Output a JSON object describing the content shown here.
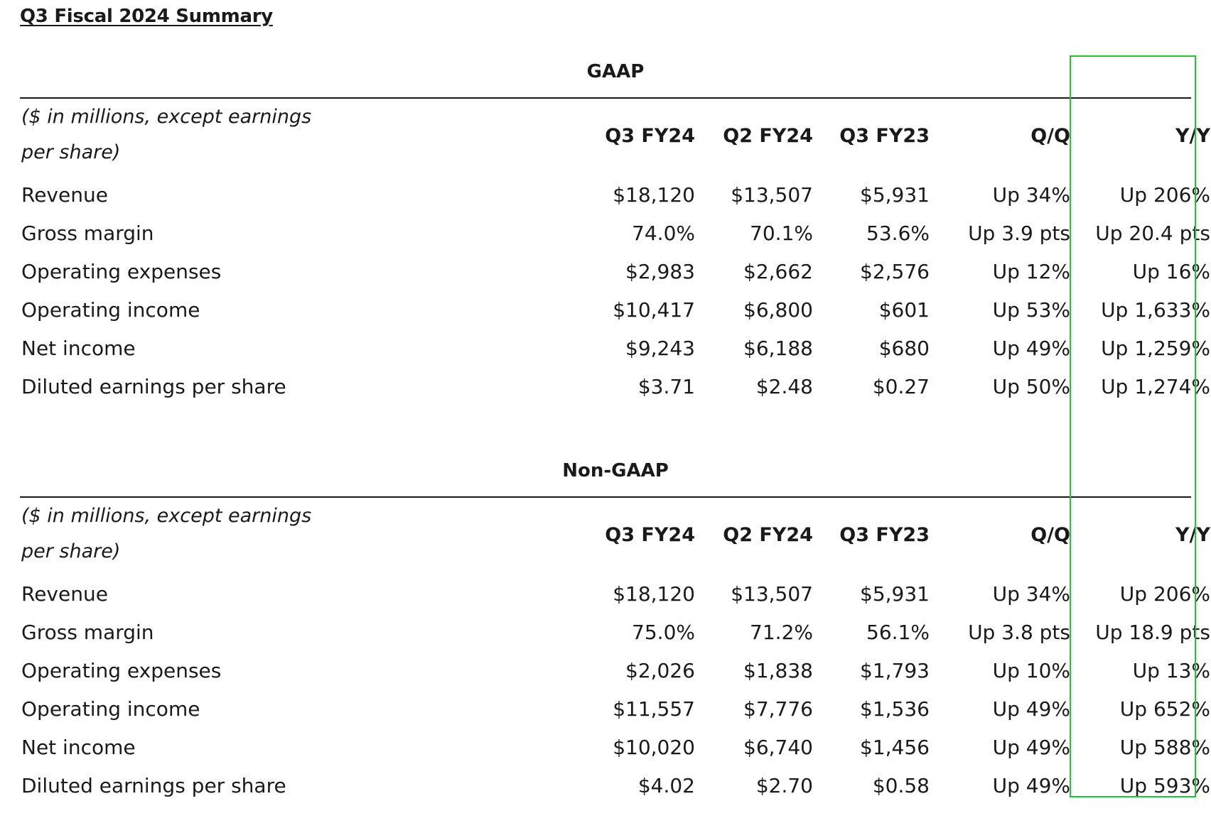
{
  "title": "Q3 Fiscal 2024 Summary",
  "highlight_color": "#22c531",
  "sections": [
    {
      "name": "GAAP",
      "unit_note": "($ in millions, except earnings per share)",
      "columns": [
        "Q3 FY24",
        "Q2 FY24",
        "Q3 FY23",
        "Q/Q",
        "Y/Y"
      ],
      "rows": [
        {
          "label": "Revenue",
          "values": [
            "$18,120",
            "$13,507",
            "$5,931",
            "Up 34%",
            "Up 206%"
          ]
        },
        {
          "label": "Gross margin",
          "values": [
            "74.0%",
            "70.1%",
            "53.6%",
            "Up 3.9 pts",
            "Up 20.4 pts"
          ]
        },
        {
          "label": "Operating expenses",
          "values": [
            "$2,983",
            "$2,662",
            "$2,576",
            "Up 12%",
            "Up 16%"
          ]
        },
        {
          "label": "Operating income",
          "values": [
            "$10,417",
            "$6,800",
            "$601",
            "Up 53%",
            "Up 1,633%"
          ]
        },
        {
          "label": "Net income",
          "values": [
            "$9,243",
            "$6,188",
            "$680",
            "Up 49%",
            "Up 1,259%"
          ]
        },
        {
          "label": "Diluted earnings per share",
          "values": [
            "$3.71",
            "$2.48",
            "$0.27",
            "Up 50%",
            "Up 1,274%"
          ]
        }
      ]
    },
    {
      "name": "Non-GAAP",
      "unit_note": "($ in millions, except earnings per share)",
      "columns": [
        "Q3 FY24",
        "Q2 FY24",
        "Q3 FY23",
        "Q/Q",
        "Y/Y"
      ],
      "rows": [
        {
          "label": "Revenue",
          "values": [
            "$18,120",
            "$13,507",
            "$5,931",
            "Up 34%",
            "Up 206%"
          ]
        },
        {
          "label": "Gross margin",
          "values": [
            "75.0%",
            "71.2%",
            "56.1%",
            "Up 3.8 pts",
            "Up 18.9 pts"
          ]
        },
        {
          "label": "Operating expenses",
          "values": [
            "$2,026",
            "$1,838",
            "$1,793",
            "Up 10%",
            "Up 13%"
          ]
        },
        {
          "label": "Operating income",
          "values": [
            "$11,557",
            "$7,776",
            "$1,536",
            "Up 49%",
            "Up 652%"
          ]
        },
        {
          "label": "Net income",
          "values": [
            "$10,020",
            "$6,740",
            "$1,456",
            "Up 49%",
            "Up 588%"
          ]
        },
        {
          "label": "Diluted earnings per share",
          "values": [
            "$4.02",
            "$2.70",
            "$0.58",
            "Up 49%",
            "Up 593%"
          ]
        }
      ]
    }
  ]
}
